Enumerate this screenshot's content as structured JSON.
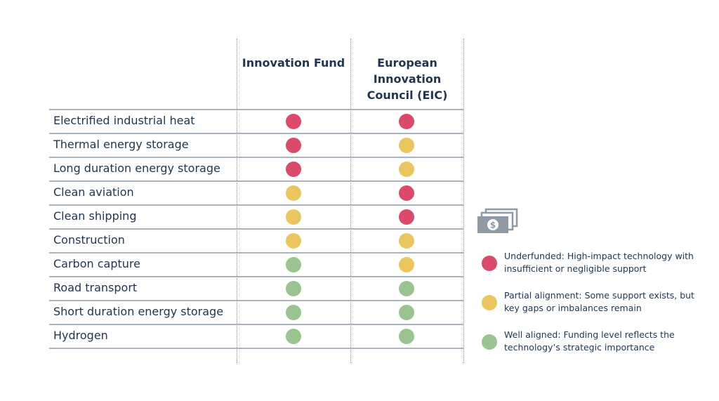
{
  "columns": [
    "Innovation Fund",
    "European Innovation Council (EIC)"
  ],
  "colors": {
    "red": "#dc4a6a",
    "yellow": "#ebc55e",
    "green": "#99c48f"
  },
  "rows": [
    {
      "label": "Electrified industrial heat",
      "innovation_fund": "red",
      "eic": "red"
    },
    {
      "label": "Thermal energy storage",
      "innovation_fund": "red",
      "eic": "yellow"
    },
    {
      "label": "Long duration energy storage",
      "innovation_fund": "red",
      "eic": "yellow"
    },
    {
      "label": "Clean aviation",
      "innovation_fund": "yellow",
      "eic": "red"
    },
    {
      "label": "Clean shipping",
      "innovation_fund": "yellow",
      "eic": "red"
    },
    {
      "label": "Construction",
      "innovation_fund": "yellow",
      "eic": "yellow"
    },
    {
      "label": "Carbon capture",
      "innovation_fund": "green",
      "eic": "yellow"
    },
    {
      "label": "Road transport",
      "innovation_fund": "green",
      "eic": "green"
    },
    {
      "label": "Short duration energy storage",
      "innovation_fund": "green",
      "eic": "green"
    },
    {
      "label": "Hydrogen",
      "innovation_fund": "green",
      "eic": "green"
    }
  ],
  "legend": {
    "icon": "money-icon",
    "items": [
      {
        "color": "red",
        "text": "Underfunded: High-impact technology with insufficient or negligible support"
      },
      {
        "color": "yellow",
        "text": "Partial alignment: Some support exists, but key gaps or imbalances remain"
      },
      {
        "color": "green",
        "text": "Well aligned: Funding level reflects the technology’s strategic importance"
      }
    ]
  }
}
